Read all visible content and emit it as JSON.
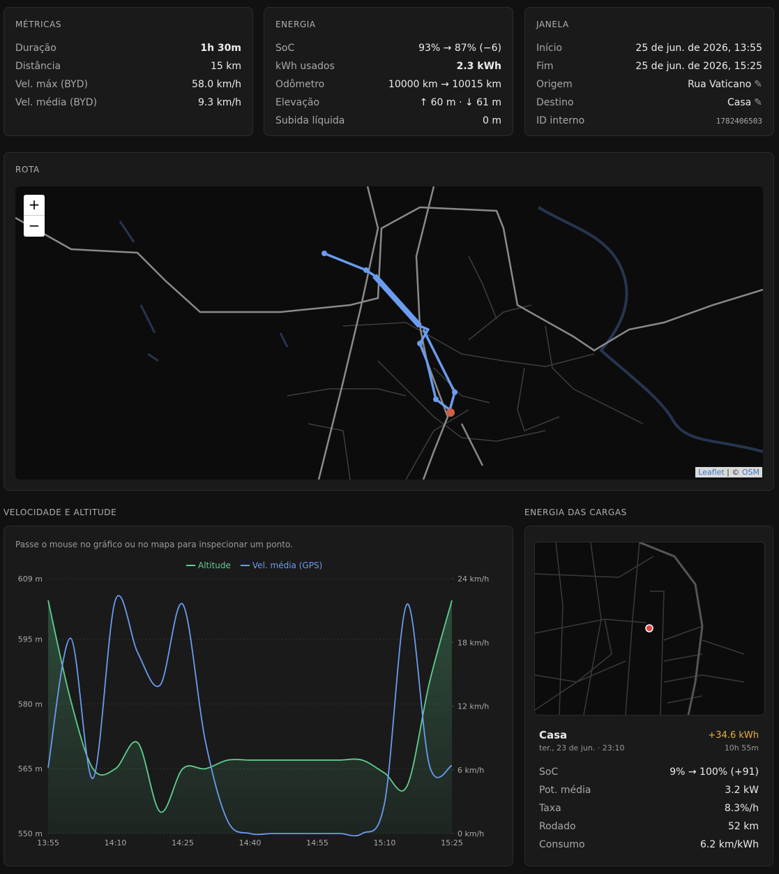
{
  "metrics": {
    "title": "MÉTRICAS",
    "rows": [
      {
        "label": "Duração",
        "value": "1h 30m"
      },
      {
        "label": "Distância",
        "value": "15 km"
      },
      {
        "label": "Vel. máx (BYD)",
        "value": "58.0 km/h"
      },
      {
        "label": "Vel. média (BYD)",
        "value": "9.3 km/h"
      }
    ]
  },
  "energy": {
    "title": "ENERGIA",
    "rows": [
      {
        "label": "SoC",
        "value": "93% → 87% (−6)"
      },
      {
        "label": "kWh usados",
        "value": "2.3 kWh"
      },
      {
        "label": "Odômetro",
        "value": "10000 km → 10015 km"
      },
      {
        "label": "Elevação",
        "value": "↑ 60 m · ↓ 61 m"
      },
      {
        "label": "Subida líquida",
        "value": "0 m"
      }
    ]
  },
  "window": {
    "title": "JANELA",
    "rows": [
      {
        "label": "Início",
        "value": "25 de jun. de 2026, 13:55"
      },
      {
        "label": "Fim",
        "value": "25 de jun. de 2026, 15:25"
      },
      {
        "label": "Origem",
        "value": "Rua Vaticano"
      },
      {
        "label": "Destino",
        "value": "Casa"
      },
      {
        "label": "ID interno",
        "value": "1782406503"
      }
    ]
  },
  "route": {
    "title": "ROTA",
    "zoom_in": "+",
    "zoom_out": "−",
    "attribution": {
      "leaflet": "Leaflet",
      "separator": "| ©",
      "osm": "OSM"
    }
  },
  "chart_section": {
    "title": "VELOCIDADE E ALTITUDE",
    "hint": "Passe o mouse no gráfico ou no mapa para inspecionar um ponto."
  },
  "chart_data": {
    "type": "line",
    "categories": [
      "13:55",
      null,
      null,
      "14:10",
      null,
      null,
      "14:25",
      null,
      null,
      "14:40",
      null,
      null,
      "14:55",
      null,
      null,
      "15:10",
      null,
      null,
      "15:25"
    ],
    "series": [
      {
        "name": "Altitude",
        "color": "#5fcf8f",
        "values": [
          604,
          581,
          565,
          565,
          571,
          555,
          565,
          565,
          567,
          567,
          567,
          567,
          567,
          567,
          567,
          564,
          561,
          585,
          604
        ]
      },
      {
        "name": "Vel. média (GPS)",
        "color": "#6a9cf0",
        "axis": "y2",
        "values": [
          6.2,
          18.4,
          5.2,
          22,
          17,
          14,
          21.6,
          8.8,
          1.2,
          0,
          0,
          0,
          0,
          0,
          0,
          2.9,
          21.6,
          6.4,
          6.4
        ]
      }
    ],
    "ylim": [
      550,
      609
    ],
    "yticks": [
      {
        "value": 550,
        "label": "550 m"
      },
      {
        "value": 565,
        "label": "565 m"
      },
      {
        "value": 580,
        "label": "580 m"
      },
      {
        "value": 595,
        "label": "595 m"
      },
      {
        "value": 609,
        "label": "609 m"
      }
    ],
    "y2lim": [
      0,
      24
    ],
    "y2ticks": [
      {
        "value": 0,
        "label": "0 km/h"
      },
      {
        "value": 6,
        "label": "6 km/h"
      },
      {
        "value": 12,
        "label": "12 km/h"
      },
      {
        "value": 18,
        "label": "18 km/h"
      },
      {
        "value": 24,
        "label": "24 km/h"
      }
    ],
    "grid": true,
    "legend": "top"
  },
  "charges": {
    "title": "ENERGIA DAS CARGAS",
    "place": "Casa",
    "energy": "+34.6 kWh",
    "date": "ter., 23 de jun. · 23:10",
    "duration": "10h 55m",
    "rows": [
      {
        "label": "SoC",
        "value": "9% → 100% (+91)"
      },
      {
        "label": "Pot. média",
        "value": "3.2 kW"
      },
      {
        "label": "Taxa",
        "value": "8.3%/h"
      },
      {
        "label": "Rodado",
        "value": "52 km"
      },
      {
        "label": "Consumo",
        "value": "6.2 km/kWh"
      }
    ]
  }
}
